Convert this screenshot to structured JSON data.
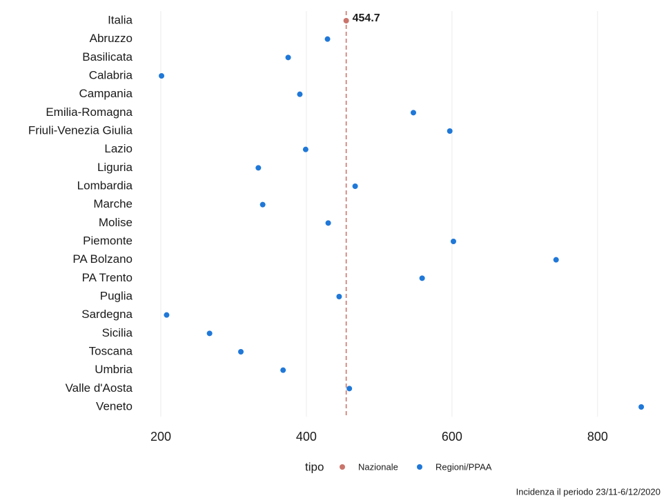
{
  "chart_data": {
    "type": "dot",
    "categories": [
      "Italia",
      "Abruzzo",
      "Basilicata",
      "Calabria",
      "Campania",
      "Emilia-Romagna",
      "Friuli-Venezia Giulia",
      "Lazio",
      "Liguria",
      "Lombardia",
      "Marche",
      "Molise",
      "Piemonte",
      "PA Bolzano",
      "PA Trento",
      "Puglia",
      "Sardegna",
      "Sicilia",
      "Toscana",
      "Umbria",
      "Valle d'Aosta",
      "Veneto"
    ],
    "series": [
      {
        "name": "Nazionale",
        "color": "#c9756c",
        "values": [
          454.7,
          null,
          null,
          null,
          null,
          null,
          null,
          null,
          null,
          null,
          null,
          null,
          null,
          null,
          null,
          null,
          null,
          null,
          null,
          null,
          null,
          null
        ]
      },
      {
        "name": "Regioni/PPAA",
        "color": "#1f78d8",
        "values": [
          null,
          429,
          375,
          201,
          391,
          547,
          597,
          399,
          334,
          467,
          340,
          430,
          602,
          743,
          559,
          445,
          208,
          267,
          310,
          368,
          459,
          860
        ]
      }
    ],
    "xlim": [
      164,
      894
    ],
    "xticks": [
      200,
      400,
      600,
      800
    ],
    "grid": true,
    "legend_title": "tipo",
    "legend_position": "bottom",
    "caption": "Incidenza il periodo 23/11-6/12/2020"
  }
}
